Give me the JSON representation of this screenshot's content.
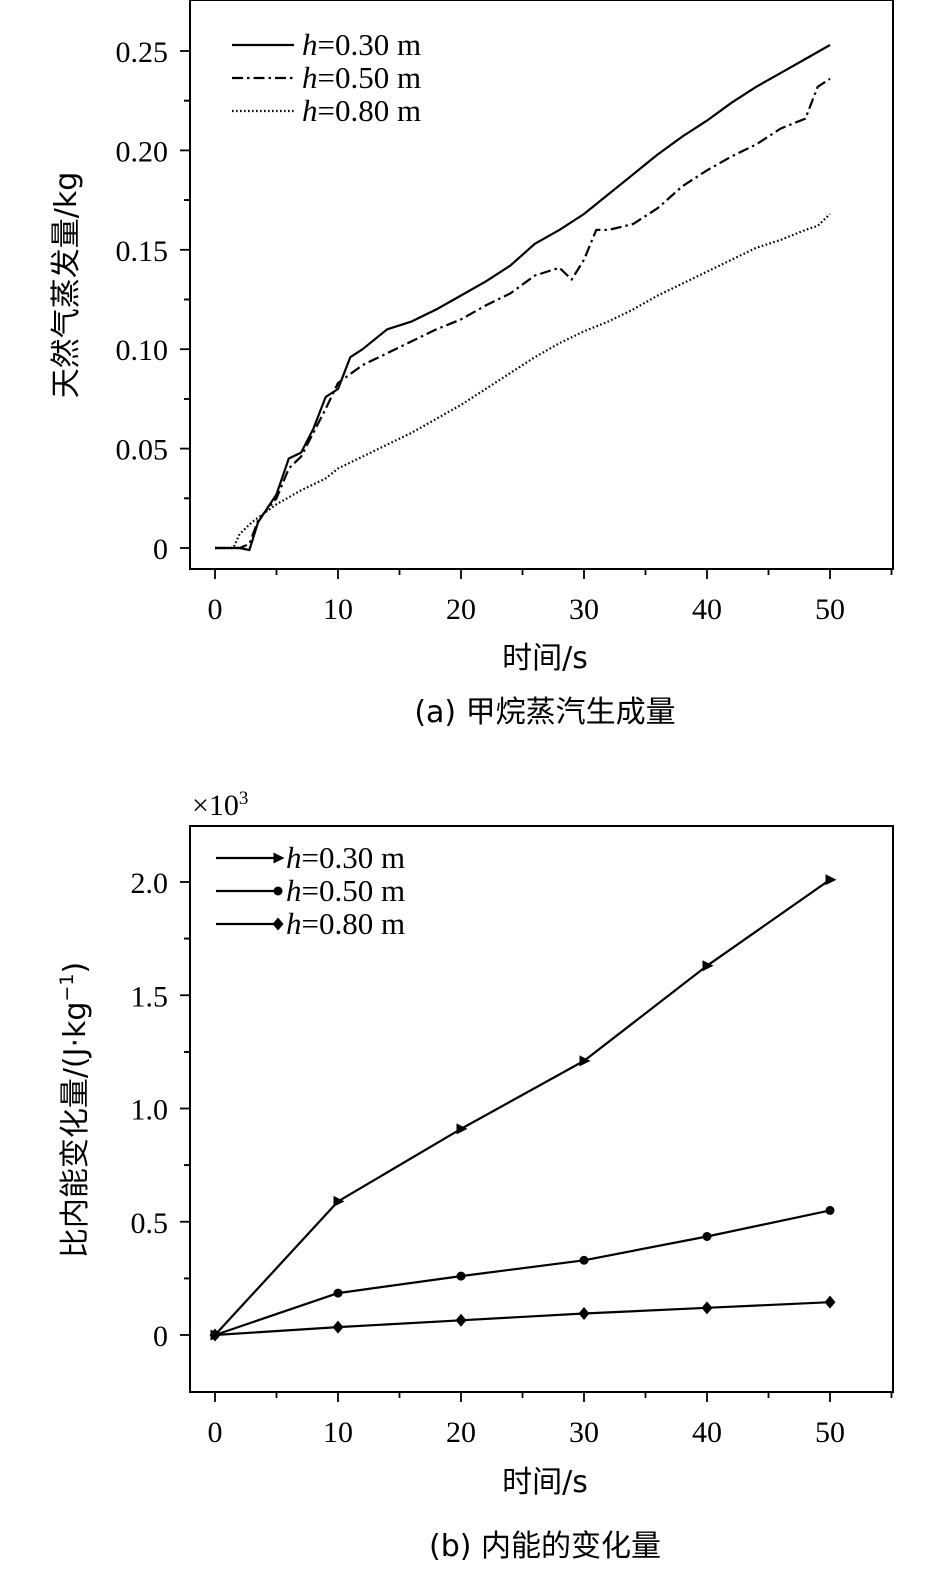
{
  "chart_data": [
    {
      "id": "a",
      "type": "line",
      "caption": "(a) 甲烷蒸汽生成量",
      "xlabel": "时间/s",
      "ylabel": "天然气蒸发量/kg",
      "xlim": [
        0,
        55
      ],
      "ylim": [
        -0.01,
        0.27
      ],
      "xticks": [
        0,
        10,
        20,
        30,
        40,
        50
      ],
      "xtick_labels": [
        "0",
        "10",
        "20",
        "30",
        "40",
        "50"
      ],
      "yticks": [
        0,
        0.05,
        0.1,
        0.15,
        0.2,
        0.25
      ],
      "ytick_labels": [
        "0",
        "0.05",
        "0.10",
        "0.15",
        "0.20",
        "0.25"
      ],
      "legend_position": "top-left",
      "series": [
        {
          "name_italic": "h",
          "name_rest": "=0.30 m",
          "style": "solid",
          "x": [
            0,
            2,
            2.8,
            3.5,
            5,
            6,
            7,
            8,
            9,
            10,
            11,
            12,
            14,
            16,
            18,
            20,
            22,
            24,
            26,
            28,
            30,
            32,
            34,
            36,
            38,
            40,
            42,
            44,
            46,
            48,
            50
          ],
          "y": [
            0,
            0,
            -0.001,
            0.013,
            0.027,
            0.045,
            0.048,
            0.06,
            0.076,
            0.08,
            0.096,
            0.1,
            0.11,
            0.114,
            0.12,
            0.127,
            0.134,
            0.142,
            0.153,
            0.16,
            0.168,
            0.178,
            0.188,
            0.198,
            0.207,
            0.215,
            0.224,
            0.232,
            0.239,
            0.246,
            0.253
          ]
        },
        {
          "name_italic": "h",
          "name_rest": "=0.50 m",
          "style": "dashdot",
          "x": [
            0,
            2,
            2.8,
            3.5,
            5,
            6,
            7,
            8,
            9,
            10,
            12,
            14,
            16,
            18,
            20,
            22,
            24,
            26,
            28,
            29,
            30,
            31,
            32,
            34,
            36,
            38,
            40,
            42,
            44,
            46,
            48,
            49,
            50
          ],
          "y": [
            0,
            0,
            0.002,
            0.014,
            0.025,
            0.04,
            0.046,
            0.058,
            0.07,
            0.083,
            0.092,
            0.098,
            0.104,
            0.11,
            0.115,
            0.122,
            0.128,
            0.137,
            0.141,
            0.135,
            0.145,
            0.16,
            0.16,
            0.163,
            0.171,
            0.182,
            0.19,
            0.197,
            0.203,
            0.211,
            0.216,
            0.232,
            0.236
          ]
        },
        {
          "name_italic": "h",
          "name_rest": "=0.80 m",
          "style": "dotted",
          "x": [
            0,
            1.5,
            2,
            3,
            5,
            7,
            9,
            10,
            12,
            14,
            16,
            18,
            20,
            22,
            24,
            26,
            28,
            30,
            32,
            34,
            36,
            38,
            40,
            42,
            44,
            46,
            48,
            49,
            50
          ],
          "y": [
            0,
            0,
            0.007,
            0.013,
            0.022,
            0.029,
            0.035,
            0.04,
            0.046,
            0.052,
            0.058,
            0.065,
            0.072,
            0.08,
            0.088,
            0.096,
            0.103,
            0.109,
            0.114,
            0.12,
            0.127,
            0.133,
            0.139,
            0.145,
            0.151,
            0.155,
            0.16,
            0.162,
            0.168
          ]
        }
      ]
    },
    {
      "id": "b",
      "type": "line",
      "caption": "(b) 内能的变化量",
      "xlabel": "时间/s",
      "ylabel_parts": [
        "比内能变化量/(J·kg",
        "−1",
        ")"
      ],
      "multiplier_base": "×10",
      "multiplier_exp": "3",
      "xlim": [
        -2,
        55
      ],
      "ylim": [
        -0.25,
        2.25
      ],
      "xticks": [
        0,
        10,
        20,
        30,
        40,
        50
      ],
      "xtick_labels": [
        "0",
        "10",
        "20",
        "30",
        "40",
        "50"
      ],
      "yticks": [
        0,
        0.5,
        1.0,
        1.5,
        2.0
      ],
      "ytick_labels": [
        "0",
        "0.5",
        "1.0",
        "1.5",
        "2.0"
      ],
      "legend_position": "top-left",
      "series": [
        {
          "name_italic": "h",
          "name_rest": "=0.30 m",
          "marker": "triangle-right",
          "x": [
            0,
            10,
            20,
            30,
            40,
            50
          ],
          "y": [
            0,
            0.59,
            0.91,
            1.21,
            1.63,
            2.01
          ]
        },
        {
          "name_italic": "h",
          "name_rest": "=0.50 m",
          "marker": "circle",
          "x": [
            0,
            10,
            20,
            30,
            40,
            50
          ],
          "y": [
            0,
            0.185,
            0.26,
            0.33,
            0.435,
            0.55
          ]
        },
        {
          "name_italic": "h",
          "name_rest": "=0.80 m",
          "marker": "diamond",
          "x": [
            0,
            10,
            20,
            30,
            40,
            50
          ],
          "y": [
            0,
            0.035,
            0.065,
            0.095,
            0.12,
            0.145
          ]
        }
      ]
    }
  ]
}
